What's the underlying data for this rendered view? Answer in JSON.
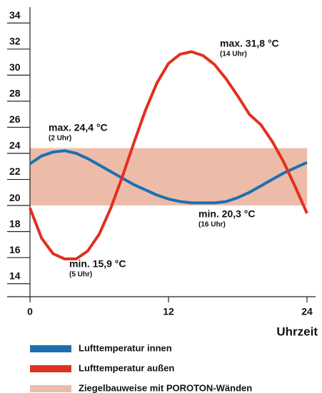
{
  "chart_data": {
    "type": "line",
    "x": [
      0,
      1,
      2,
      3,
      4,
      5,
      6,
      7,
      8,
      9,
      10,
      11,
      12,
      13,
      14,
      15,
      16,
      17,
      18,
      19,
      20,
      21,
      22,
      23,
      24
    ],
    "series": [
      {
        "name": "Lufttemperatur innen",
        "color": "#1d6fb2",
        "values": [
          23.2,
          23.8,
          24.1,
          24.2,
          24.0,
          23.6,
          23.1,
          22.6,
          22.1,
          21.6,
          21.2,
          20.8,
          20.5,
          20.3,
          20.2,
          20.2,
          20.2,
          20.3,
          20.6,
          21.0,
          21.5,
          22.0,
          22.5,
          22.9,
          23.3
        ]
      },
      {
        "name": "Lufttemperatur außen",
        "color": "#e2301f",
        "values": [
          19.8,
          17.5,
          16.3,
          15.9,
          15.9,
          16.5,
          17.8,
          19.8,
          22.2,
          24.8,
          27.3,
          29.4,
          30.9,
          31.6,
          31.8,
          31.5,
          30.8,
          29.7,
          28.4,
          27.0,
          26.2,
          24.9,
          23.3,
          21.4,
          19.4
        ]
      }
    ],
    "band": {
      "name": "Ziegelbauweise mit POROTON-Wänden",
      "color": "#ecbca9",
      "range": [
        20,
        24.4
      ]
    },
    "annotations": [
      {
        "text": "max. 24,4 °C",
        "sub": "(2 Uhr)"
      },
      {
        "text": "max. 31,8 °C",
        "sub": "(14 Uhr)"
      },
      {
        "text": "min. 20,3 °C",
        "sub": "(16 Uhr)"
      },
      {
        "text": "min. 15,9 °C",
        "sub": "(5 Uhr)"
      }
    ],
    "x_label": "Uhrzeit",
    "xlim": [
      0,
      24
    ],
    "xticks": [
      0,
      12,
      24
    ],
    "ylim": [
      13,
      35
    ],
    "yticks": [
      14,
      16,
      18,
      20,
      22,
      24,
      26,
      28,
      30,
      32,
      34
    ]
  }
}
